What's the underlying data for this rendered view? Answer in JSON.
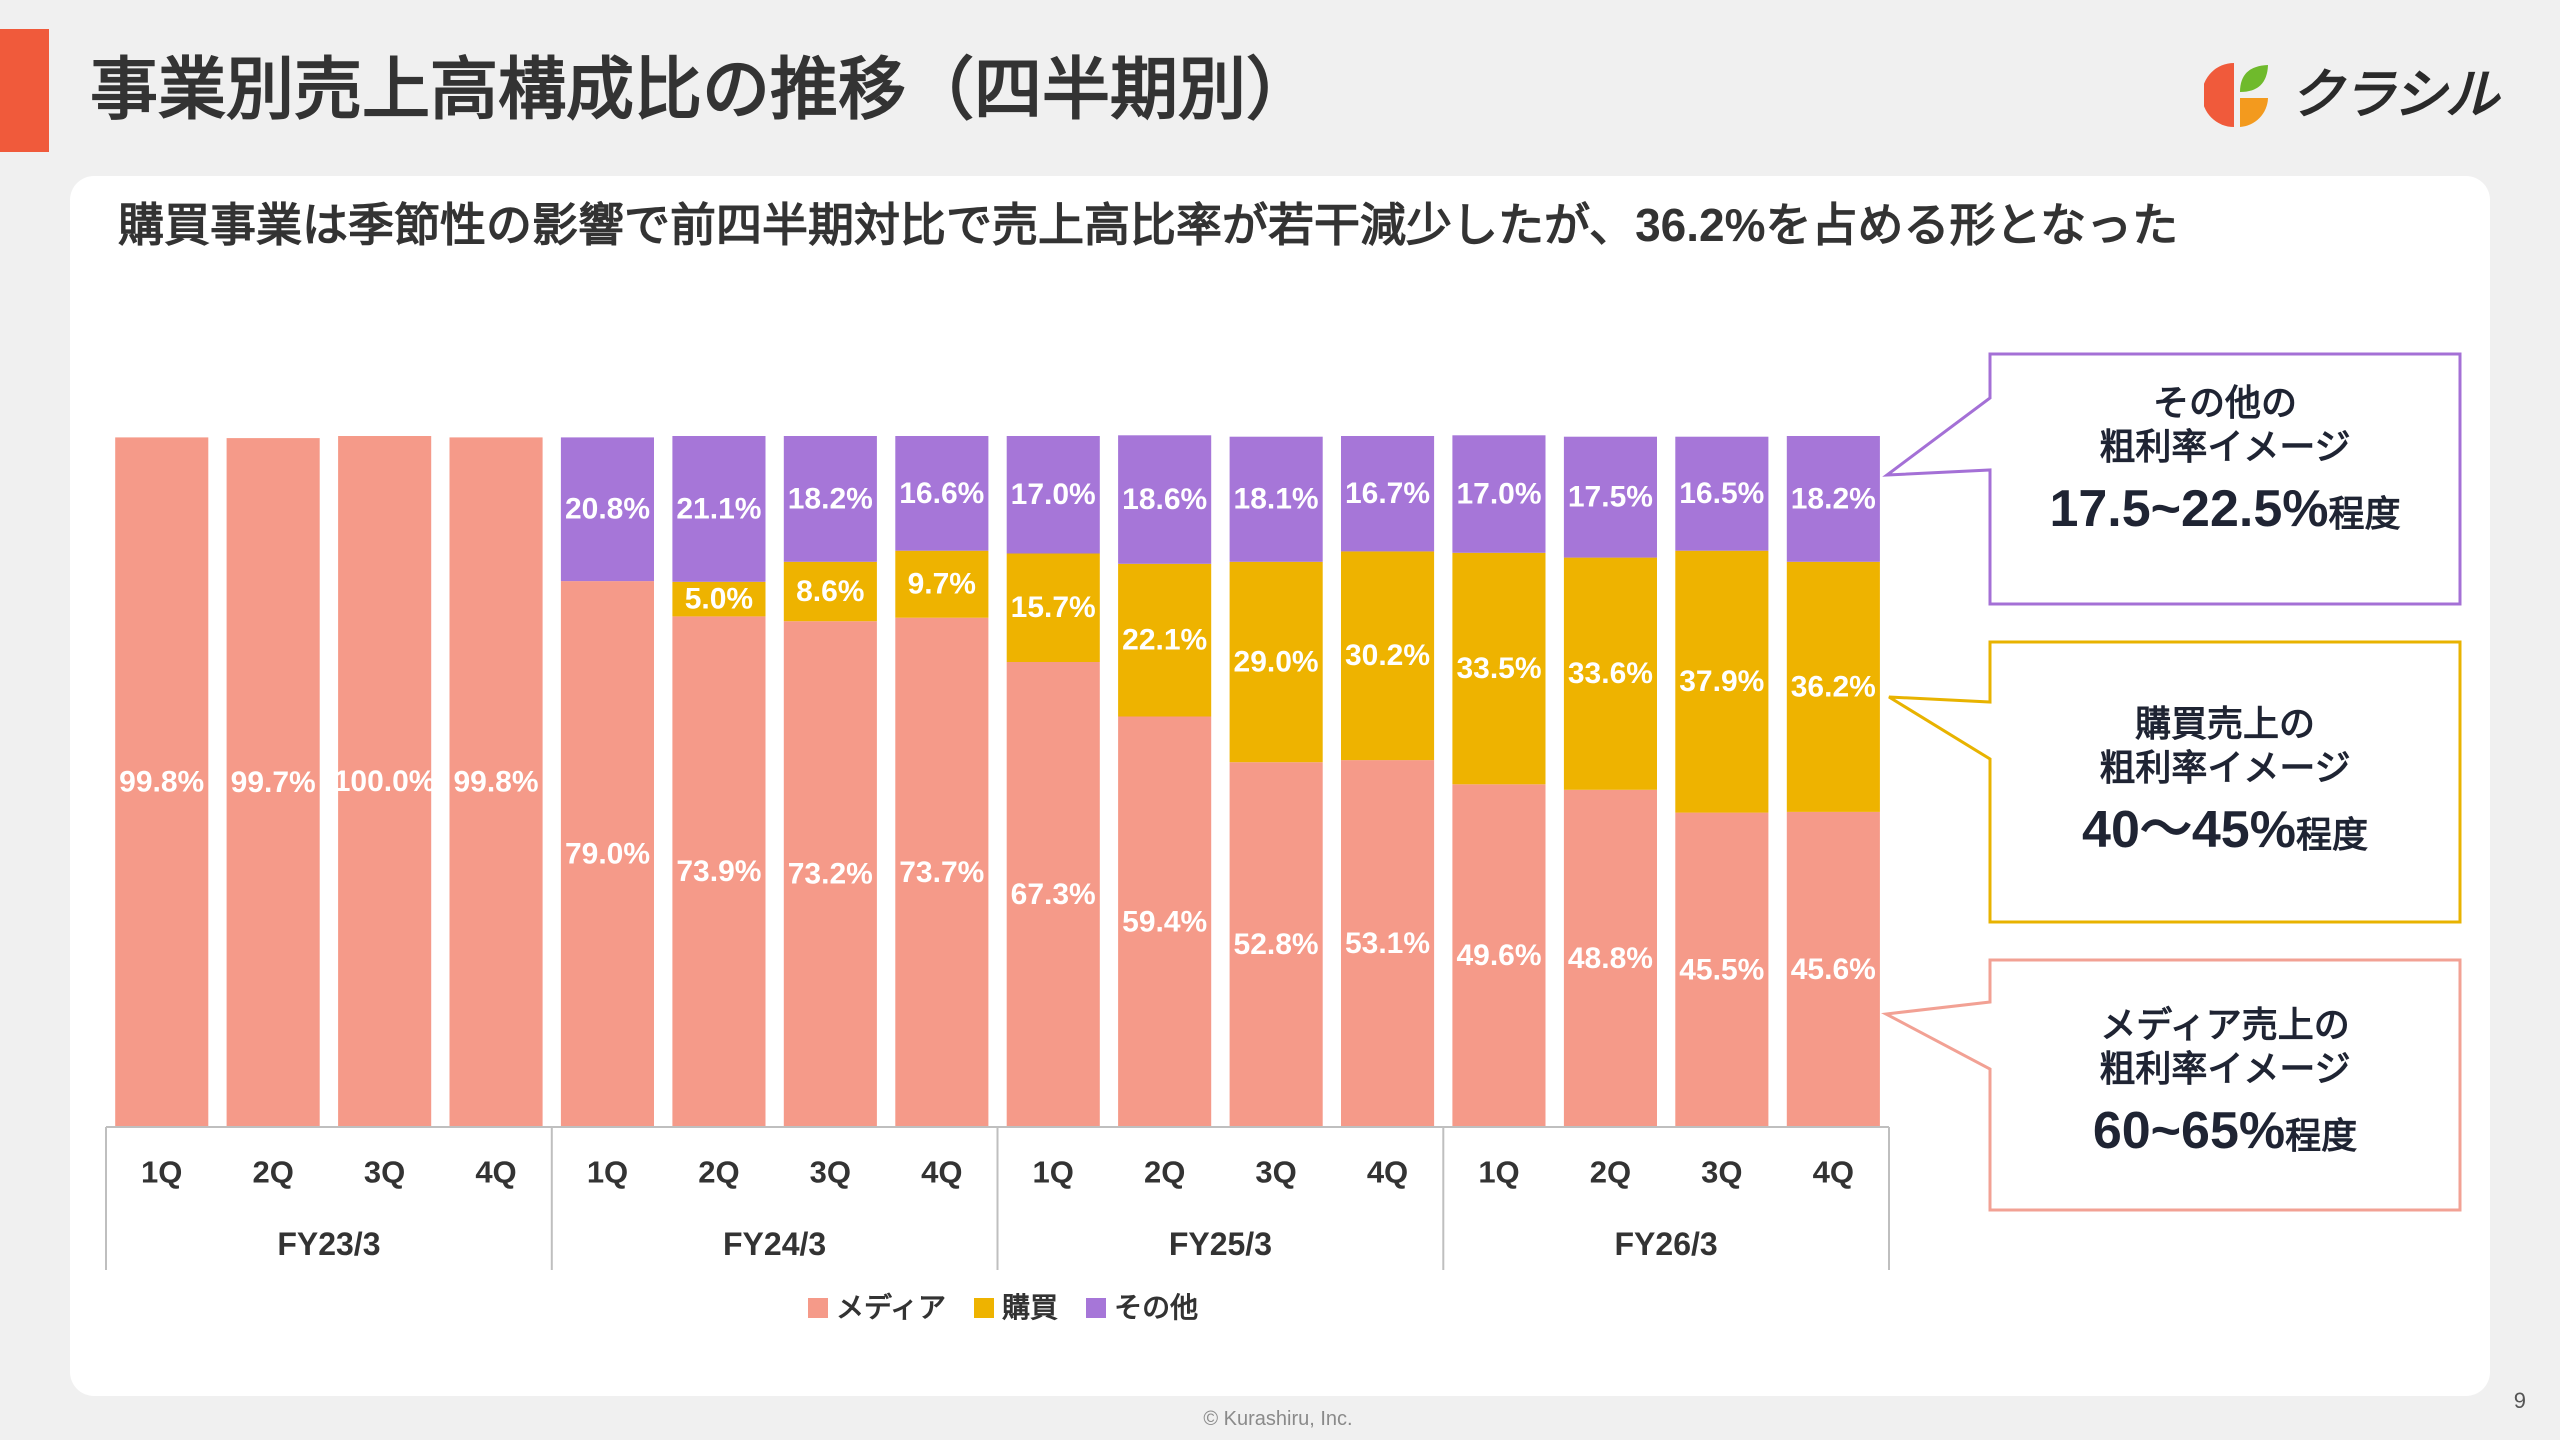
{
  "title": "事業別売上高構成比の推移（四半期別）",
  "logo": {
    "text": "クラシル",
    "icon": "kurashiru-logo-icon"
  },
  "subtitle": "購買事業は季節性の影響で前四半期対比で売上高比率が若干減少したが、36.2%を占める形となった",
  "callouts": [
    {
      "line1": "その他の",
      "line2": "粗利率イメージ",
      "value": "17.5~22.5%",
      "suffix": "程度",
      "color": "#a470d6"
    },
    {
      "line1": "購買売上の",
      "line2": "粗利率イメージ",
      "value": "40〜45%",
      "suffix": "程度",
      "color": "#e8b300"
    },
    {
      "line1": "メディア売上の",
      "line2": "粗利率イメージ",
      "value": "60~65%",
      "suffix": "程度",
      "color": "#f2a194"
    }
  ],
  "footer": {
    "copyright": "© Kurashiru, Inc.",
    "page_number": "9"
  },
  "colors": {
    "accent": "#f05a3b",
    "background": "#f0f0f0",
    "panel": "#ffffff"
  },
  "chart_data": {
    "type": "bar",
    "stacked": true,
    "percent": true,
    "groups": [
      {
        "name": "FY23/3",
        "quarters": [
          "1Q",
          "2Q",
          "3Q",
          "4Q"
        ]
      },
      {
        "name": "FY24/3",
        "quarters": [
          "1Q",
          "2Q",
          "3Q",
          "4Q"
        ]
      },
      {
        "name": "FY25/3",
        "quarters": [
          "1Q",
          "2Q",
          "3Q",
          "4Q"
        ]
      },
      {
        "name": "FY26/3",
        "quarters": [
          "1Q",
          "2Q",
          "3Q",
          "4Q"
        ]
      }
    ],
    "series": [
      {
        "name": "メディア",
        "color": "#f59a89",
        "values": [
          99.8,
          99.7,
          100.0,
          99.8,
          79.0,
          73.9,
          73.2,
          73.7,
          67.3,
          59.4,
          52.8,
          53.1,
          49.6,
          48.8,
          45.5,
          45.6
        ]
      },
      {
        "name": "購買",
        "color": "#eeb300",
        "values": [
          null,
          null,
          null,
          null,
          null,
          5.0,
          8.6,
          9.7,
          15.7,
          22.1,
          29.0,
          30.2,
          33.5,
          33.6,
          37.9,
          36.2
        ]
      },
      {
        "name": "その他",
        "color": "#a676d8",
        "values": [
          null,
          null,
          null,
          null,
          20.8,
          21.1,
          18.2,
          16.6,
          17.0,
          18.6,
          18.1,
          16.7,
          17.0,
          17.5,
          16.5,
          18.2
        ]
      }
    ],
    "value_suffix": "%",
    "ylim": [
      0,
      100
    ],
    "legend": "bottom",
    "grid": false
  }
}
